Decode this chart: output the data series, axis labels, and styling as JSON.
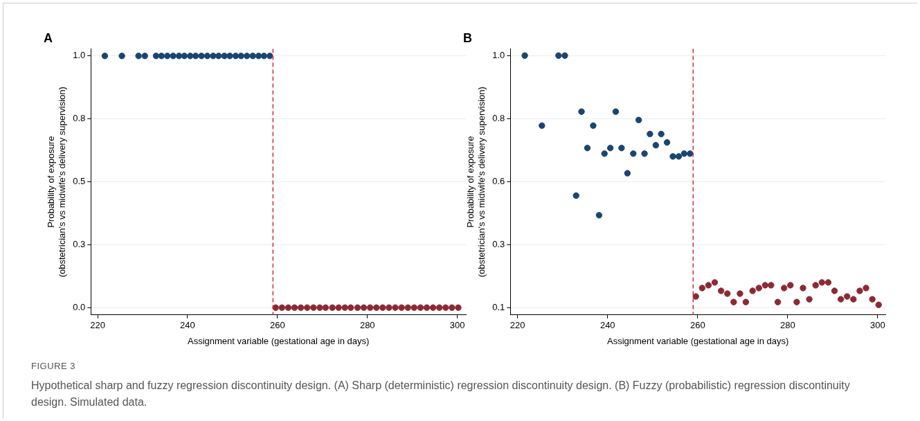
{
  "chart_data": [
    {
      "type": "scatter",
      "title": "A",
      "xlabel": "Assignment variable (gestational age in days)",
      "ylabel": "Probability of exposure\n(obstetrician's vs midwife's delivery supervision)",
      "xlim": [
        218.5,
        301.9
      ],
      "xticks": [
        220,
        240,
        260,
        280,
        300
      ],
      "ylim": [
        -0.029,
        1.028
      ],
      "yticks": [
        {
          "value": 0,
          "label": "0.0"
        },
        {
          "value": 0.25,
          "label": "0.3"
        },
        {
          "value": 0.5,
          "label": "0.5"
        },
        {
          "value": 0.75,
          "label": "0.8"
        },
        {
          "value": 1,
          "label": "1.0"
        }
      ],
      "grid": "y",
      "marker": "circle",
      "ref_lines": [
        {
          "axis": "x",
          "value": 259,
          "color": "#d7263d",
          "line_style": "dashed"
        }
      ],
      "series": [
        {
          "color": "#1a4571",
          "x": [
            221.6,
            225.4,
            229.1,
            230.5,
            233.0,
            234.2,
            235.5,
            236.8,
            238.1,
            239.3,
            240.6,
            241.8,
            243.1,
            244.4,
            245.7,
            246.9,
            248.2,
            249.4,
            250.7,
            251.9,
            253.2,
            254.5,
            255.8,
            257.0,
            258.3
          ],
          "values": [
            1,
            1,
            1,
            1,
            1,
            1,
            1,
            1,
            1,
            1,
            1,
            1,
            1,
            1,
            1,
            1,
            1,
            1,
            1,
            1,
            1,
            1,
            1,
            1,
            1
          ]
        },
        {
          "color": "#8b2a35",
          "x": [
            259.6,
            261.0,
            262.4,
            263.8,
            265.2,
            266.6,
            268.0,
            269.4,
            270.7,
            272.2,
            273.6,
            275.0,
            276.3,
            277.8,
            279.2,
            280.6,
            282.0,
            283.4,
            284.8,
            286.2,
            287.6,
            289.0,
            290.4,
            291.8,
            293.2,
            294.6,
            296.0,
            297.4,
            298.8,
            300.2
          ],
          "values": [
            0,
            0,
            0,
            0,
            0,
            0,
            0,
            0,
            0,
            0,
            0,
            0,
            0,
            0,
            0,
            0,
            0,
            0,
            0,
            0,
            0,
            0,
            0,
            0,
            0,
            0,
            0,
            0,
            0,
            0
          ]
        }
      ],
      "annotations": [
        "FIGURE 3",
        "Hypothetical sharp and fuzzy regression discontinuity design. (A) Sharp (deterministic) regression discontinuity design. (B) Fuzzy (probabilistic) regression discontinuity design. Simulated data."
      ]
    },
    {
      "type": "scatter",
      "title": "B",
      "xlabel": "Assignment variable (gestational age in days)",
      "ylabel": "Probability of exposure\n(obstetrician's vs midwife's delivery supervision)",
      "xlim": [
        218.4,
        301.7
      ],
      "xticks": [
        220,
        240,
        260,
        280,
        300
      ],
      "ylim": [
        0.074,
        1.024
      ],
      "yticks": [
        {
          "value": 0.1,
          "label": "0.1"
        },
        {
          "value": 0.325,
          "label": "0.3"
        },
        {
          "value": 0.55,
          "label": "0.6"
        },
        {
          "value": 0.775,
          "label": "0.8"
        },
        {
          "value": 1,
          "label": "1.0"
        }
      ],
      "grid": "y",
      "marker": "circle",
      "ref_lines": [
        {
          "axis": "x",
          "value": 259,
          "color": "#d7263d",
          "line_style": "dashed"
        }
      ],
      "series": [
        {
          "color": "#1a4571",
          "x": [
            221.6,
            225.4,
            229.1,
            230.5,
            233.0,
            234.2,
            235.5,
            236.8,
            238.1,
            239.3,
            240.6,
            241.8,
            243.1,
            244.4,
            245.7,
            246.9,
            248.2,
            249.4,
            250.7,
            251.9,
            253.2,
            254.5,
            255.8,
            257.0,
            258.3
          ],
          "values": [
            1,
            0.75,
            1,
            1,
            0.5,
            0.8,
            0.67,
            0.75,
            0.43,
            0.65,
            0.67,
            0.8,
            0.67,
            0.58,
            0.65,
            0.77,
            0.65,
            0.72,
            0.68,
            0.72,
            0.69,
            0.64,
            0.64,
            0.65,
            0.65
          ]
        },
        {
          "color": "#8b2a35",
          "x": [
            259.6,
            261.0,
            262.4,
            263.8,
            265.2,
            266.6,
            268.0,
            269.4,
            270.7,
            272.2,
            273.6,
            275.0,
            276.3,
            277.8,
            279.2,
            280.6,
            282.0,
            283.4,
            284.8,
            286.2,
            287.6,
            289.0,
            290.4,
            291.8,
            293.2,
            294.6,
            296.0,
            297.4,
            298.8,
            300.2
          ],
          "values": [
            0.14,
            0.17,
            0.18,
            0.19,
            0.16,
            0.15,
            0.12,
            0.15,
            0.12,
            0.16,
            0.17,
            0.18,
            0.18,
            0.12,
            0.17,
            0.18,
            0.12,
            0.17,
            0.13,
            0.18,
            0.19,
            0.19,
            0.16,
            0.13,
            0.14,
            0.13,
            0.16,
            0.17,
            0.13,
            0.11
          ]
        }
      ]
    }
  ]
}
